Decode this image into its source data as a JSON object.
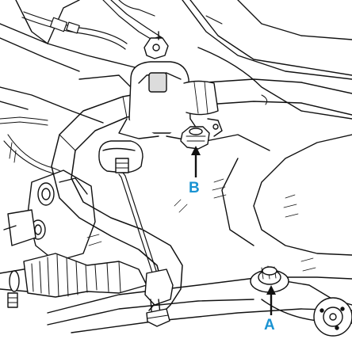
{
  "diagram": {
    "callouts": [
      {
        "id": "A",
        "label": "A"
      },
      {
        "id": "B",
        "label": "B"
      }
    ],
    "colors": {
      "line": "#111111",
      "fill": "#ffffff",
      "shade": "#dcdcdc",
      "callout": "#1a93d2",
      "arrow": "#111111"
    }
  }
}
